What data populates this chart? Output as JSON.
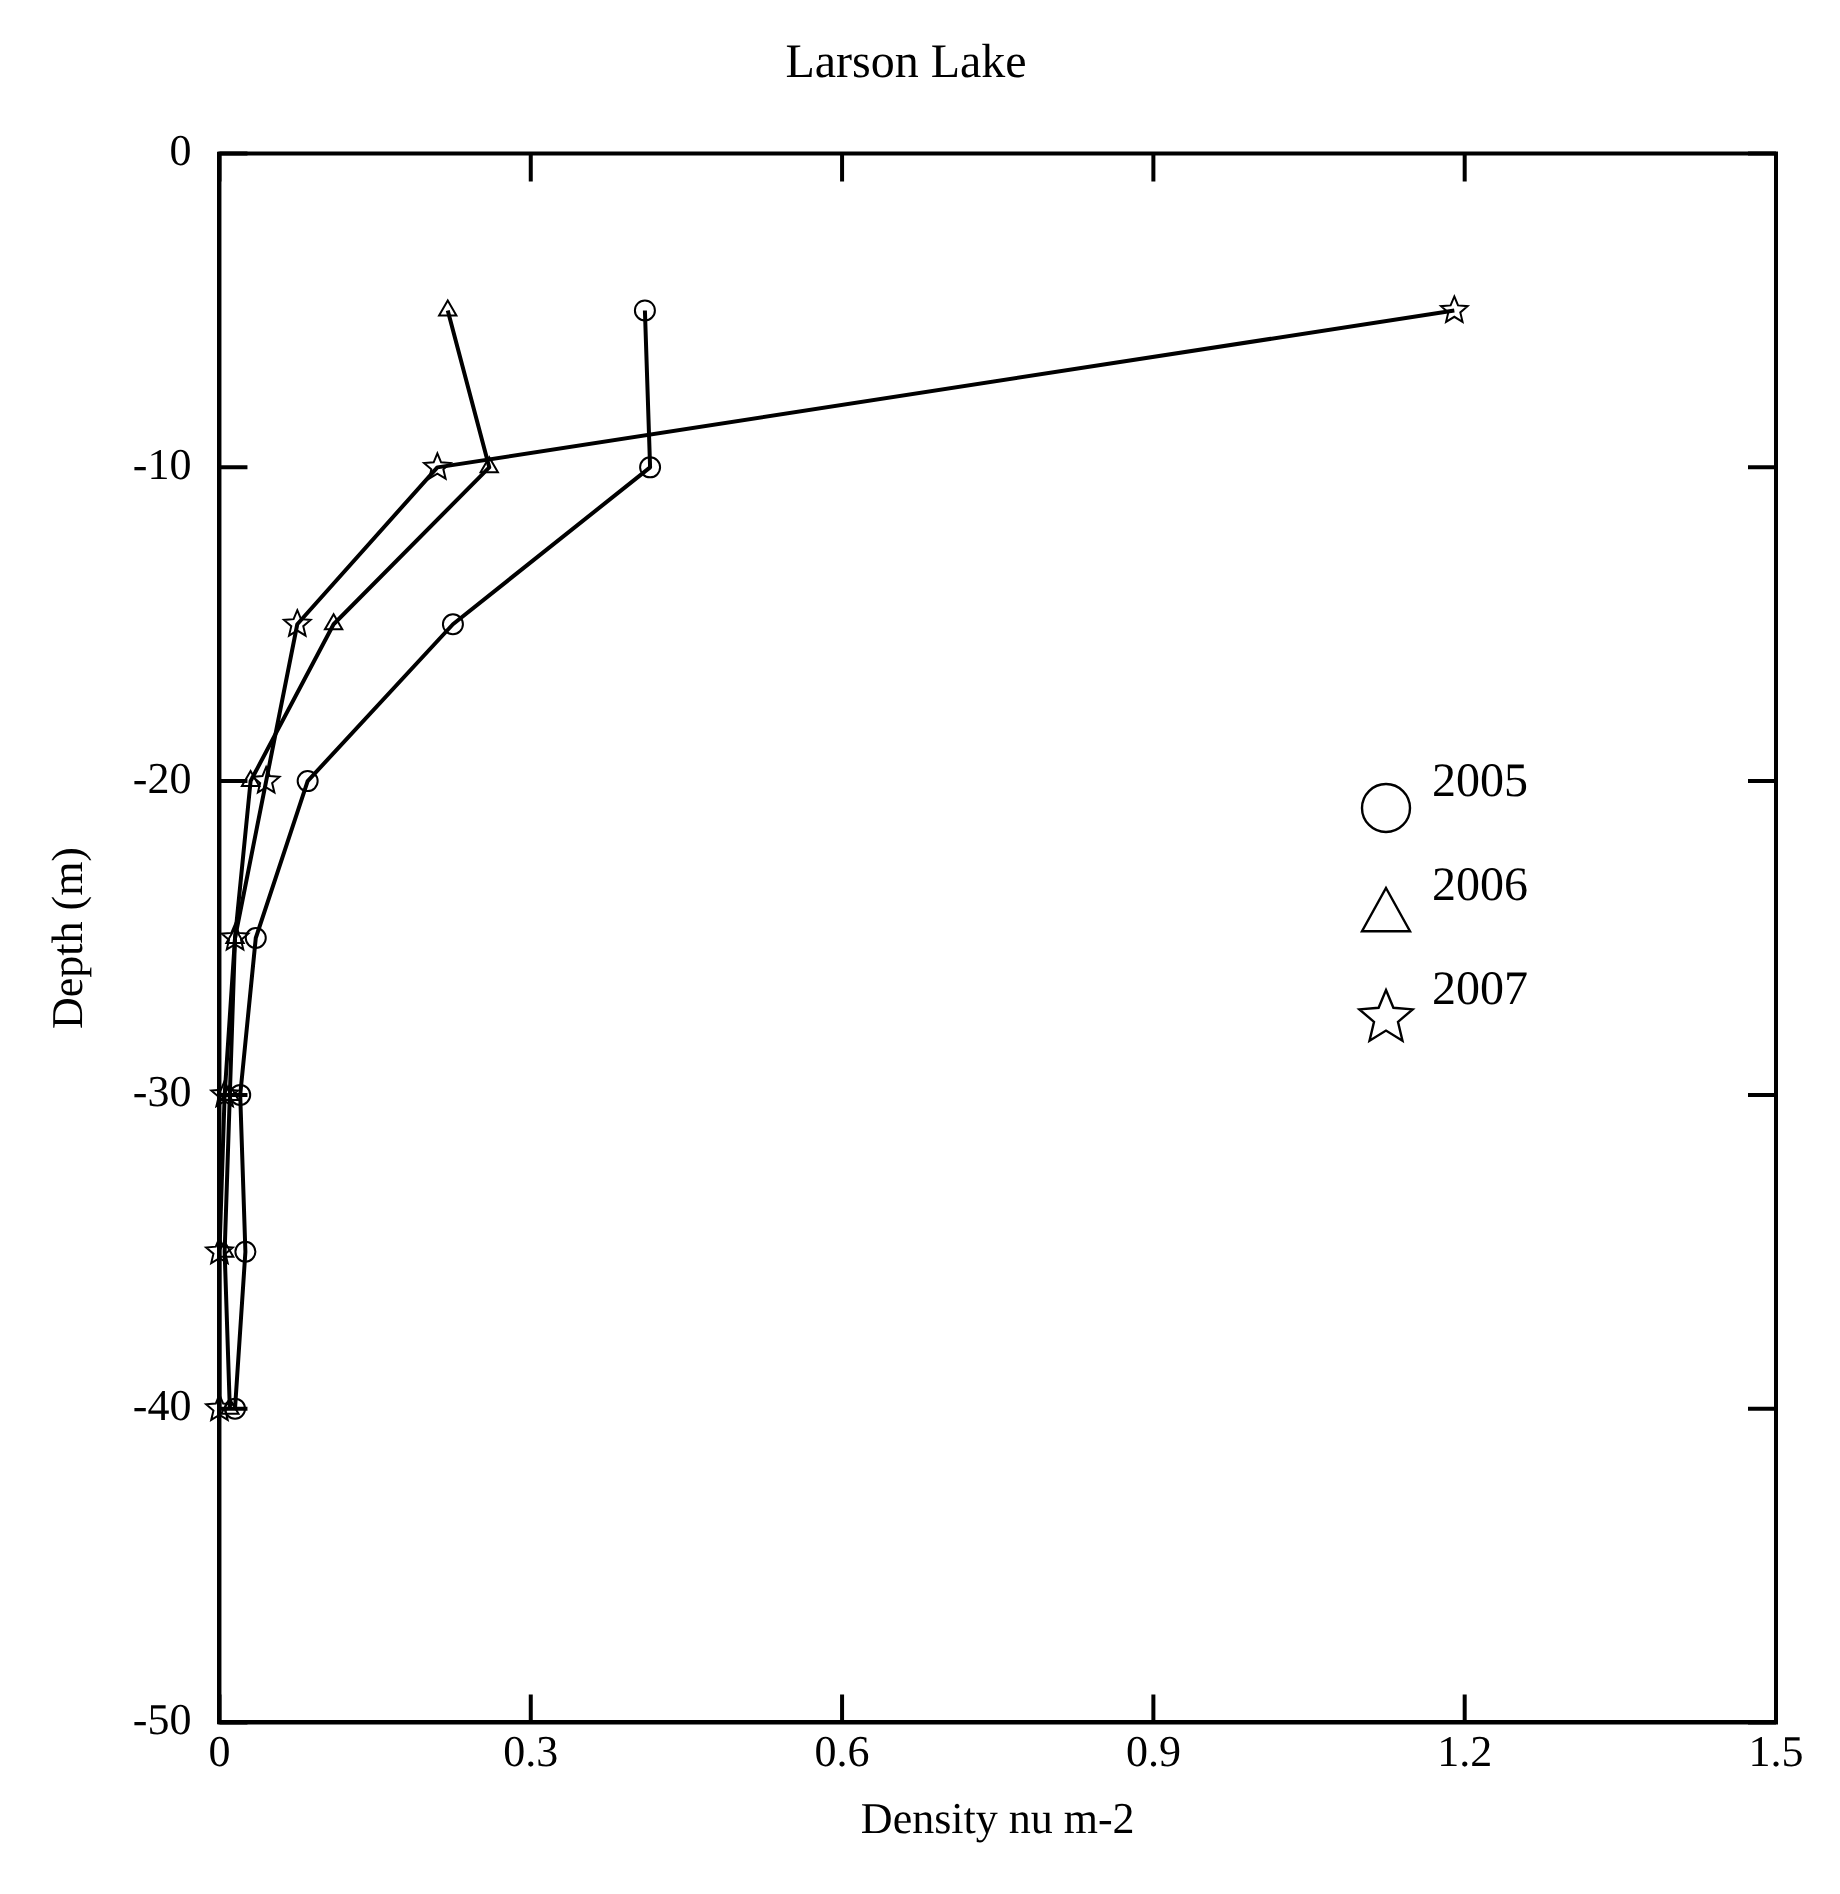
{
  "chart_data": {
    "type": "line",
    "title": "Larson Lake",
    "xlabel": "Density nu m-2",
    "ylabel": "Depth (m)",
    "xlim": [
      0,
      1.5
    ],
    "xticks": [
      0,
      0.3,
      0.6,
      0.9,
      1.2,
      1.5
    ],
    "ylim": [
      -50,
      0
    ],
    "yticks": [
      -50,
      -40,
      -30,
      -20,
      -10,
      0
    ],
    "grid": false,
    "legend": "right",
    "line_style": "solid",
    "series": [
      {
        "name": "2005",
        "color": "#000000",
        "marker": "circle",
        "x": [
          0.41,
          0.415,
          0.225,
          0.085,
          0.035,
          0.02,
          0.025,
          0.015
        ],
        "values": [
          -5,
          -10,
          -15,
          -20,
          -25,
          -30,
          -35,
          -40
        ]
      },
      {
        "name": "2006",
        "color": "#000000",
        "marker": "triangle",
        "x": [
          0.22,
          0.26,
          0.11,
          0.03,
          0.015,
          0.01,
          0.005,
          0.01
        ],
        "values": [
          -5,
          -10,
          -15,
          -20,
          -25,
          -30,
          -35,
          -40
        ]
      },
      {
        "name": "2007",
        "color": "#000000",
        "marker": "star",
        "x": [
          1.19,
          0.21,
          0.075,
          0.045,
          0.015,
          0.005,
          0,
          0
        ],
        "values": [
          -5,
          -10,
          -15,
          -20,
          -25,
          -30,
          -35,
          -40
        ]
      }
    ]
  }
}
